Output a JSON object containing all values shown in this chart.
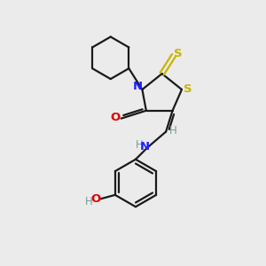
{
  "bg_color": "#ebebeb",
  "bond_color": "#1a1a1a",
  "N_color": "#2020ff",
  "S_color": "#c8b400",
  "O_color": "#e00000",
  "H_color": "#7a9a9a",
  "line_width": 1.6,
  "figsize": [
    3.0,
    3.0
  ],
  "dpi": 100,
  "xlim": [
    0,
    10
  ],
  "ylim": [
    0,
    10
  ]
}
